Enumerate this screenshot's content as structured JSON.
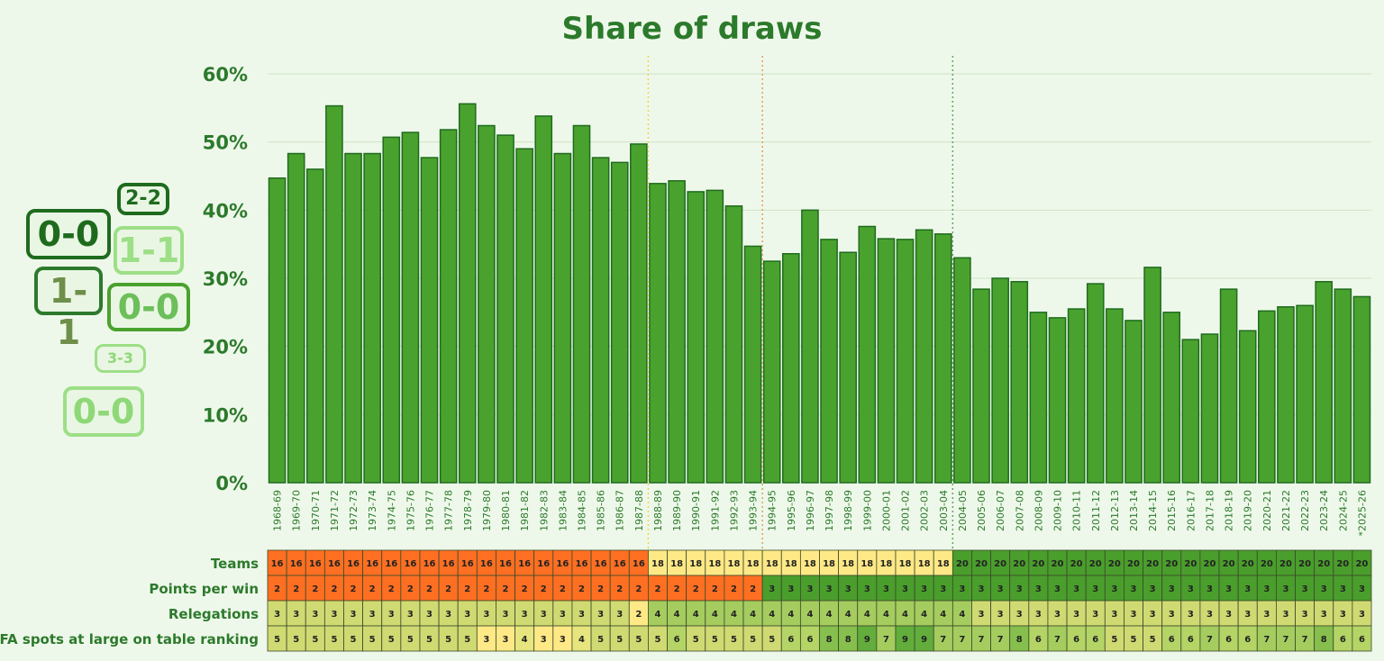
{
  "chart_data": {
    "type": "bar",
    "title": "Share of draws",
    "xlabel": "",
    "ylabel": "",
    "ylim": [
      0,
      60
    ],
    "yticks": [
      "0%",
      "10%",
      "20%",
      "30%",
      "40%",
      "50%",
      "60%"
    ],
    "grid": true,
    "colors": {
      "bar": "#4aa22e",
      "bar_border": "#1e6b1e",
      "title": "#2c7a2c",
      "background": "#eef8ea"
    },
    "categories": [
      "1968-69",
      "1969-70",
      "1970-71",
      "1971-72",
      "1972-73",
      "1973-74",
      "1974-75",
      "1975-76",
      "1976-77",
      "1977-78",
      "1978-79",
      "1979-80",
      "1980-81",
      "1981-82",
      "1982-83",
      "1983-84",
      "1984-85",
      "1985-86",
      "1986-87",
      "1987-88",
      "1988-89",
      "1989-90",
      "1990-91",
      "1991-92",
      "1992-93",
      "1993-94",
      "1994-95",
      "1995-96",
      "1996-97",
      "1997-98",
      "1998-99",
      "1999-00",
      "2000-01",
      "2001-02",
      "2002-03",
      "2003-04",
      "2004-05",
      "2005-06",
      "2006-07",
      "2007-08",
      "2008-09",
      "2009-10",
      "2010-11",
      "2011-12",
      "2012-13",
      "2013-14",
      "2014-15",
      "2015-16",
      "2016-17",
      "2017-18",
      "2018-19",
      "2019-20",
      "2020-21",
      "2021-22",
      "2022-23",
      "2023-24",
      "2024-25",
      "*2025-26"
    ],
    "values": [
      44.7,
      48.3,
      46.0,
      55.3,
      48.3,
      48.3,
      50.7,
      51.4,
      47.7,
      51.8,
      55.6,
      52.4,
      51.0,
      49.0,
      53.8,
      48.3,
      52.4,
      47.7,
      47.0,
      49.7,
      43.9,
      44.3,
      42.7,
      42.9,
      40.6,
      34.7,
      32.5,
      33.6,
      40.0,
      35.7,
      33.8,
      37.6,
      35.8,
      35.7,
      37.1,
      36.5,
      33.0,
      28.4,
      30.0,
      29.5,
      25.0,
      24.2,
      25.5,
      29.2,
      25.5,
      23.8,
      31.6,
      25.0,
      21.0,
      21.8,
      28.4,
      22.3,
      25.2,
      25.8,
      26.0,
      29.5,
      28.4,
      27.3
    ],
    "era_dividers": [
      {
        "after": "1987-88",
        "color": "#f2d34a"
      },
      {
        "after": "1993-94",
        "color": "#e0a060"
      },
      {
        "after": "2003-04",
        "color": "#6aa06a"
      }
    ],
    "table": {
      "rows": [
        {
          "label": "Teams",
          "values": [
            16,
            16,
            16,
            16,
            16,
            16,
            16,
            16,
            16,
            16,
            16,
            16,
            16,
            16,
            16,
            16,
            16,
            16,
            16,
            16,
            18,
            18,
            18,
            18,
            18,
            18,
            18,
            18,
            18,
            18,
            18,
            18,
            18,
            18,
            18,
            18,
            20,
            20,
            20,
            20,
            20,
            20,
            20,
            20,
            20,
            20,
            20,
            20,
            20,
            20,
            20,
            20,
            20,
            20,
            20,
            20,
            20,
            20
          ]
        },
        {
          "label": "Points per win",
          "values": [
            2,
            2,
            2,
            2,
            2,
            2,
            2,
            2,
            2,
            2,
            2,
            2,
            2,
            2,
            2,
            2,
            2,
            2,
            2,
            2,
            2,
            2,
            2,
            2,
            2,
            2,
            3,
            3,
            3,
            3,
            3,
            3,
            3,
            3,
            3,
            3,
            3,
            3,
            3,
            3,
            3,
            3,
            3,
            3,
            3,
            3,
            3,
            3,
            3,
            3,
            3,
            3,
            3,
            3,
            3,
            3,
            3,
            3
          ]
        },
        {
          "label": "Relegations",
          "values": [
            3,
            3,
            3,
            3,
            3,
            3,
            3,
            3,
            3,
            3,
            3,
            3,
            3,
            3,
            3,
            3,
            3,
            3,
            3,
            2,
            4,
            4,
            4,
            4,
            4,
            4,
            4,
            4,
            4,
            4,
            4,
            4,
            4,
            4,
            4,
            4,
            4,
            3,
            3,
            3,
            3,
            3,
            3,
            3,
            3,
            3,
            3,
            3,
            3,
            3,
            3,
            3,
            3,
            3,
            3,
            3,
            3,
            3
          ]
        },
        {
          "label": "UEFA spots at large on table ranking",
          "values": [
            5,
            5,
            5,
            5,
            5,
            5,
            5,
            5,
            5,
            5,
            5,
            3,
            3,
            4,
            3,
            3,
            4,
            5,
            5,
            5,
            5,
            6,
            5,
            5,
            5,
            5,
            5,
            6,
            6,
            8,
            8,
            9,
            7,
            9,
            9,
            7,
            7,
            7,
            7,
            8,
            6,
            7,
            6,
            6,
            5,
            5,
            5,
            6,
            6,
            7,
            6,
            6,
            7,
            7,
            7,
            8,
            6,
            6
          ]
        }
      ]
    }
  },
  "decor": {
    "badges": [
      "2-2",
      "0-0",
      "1-1",
      "1-1",
      "0-0",
      "3-3",
      "0-0"
    ]
  }
}
